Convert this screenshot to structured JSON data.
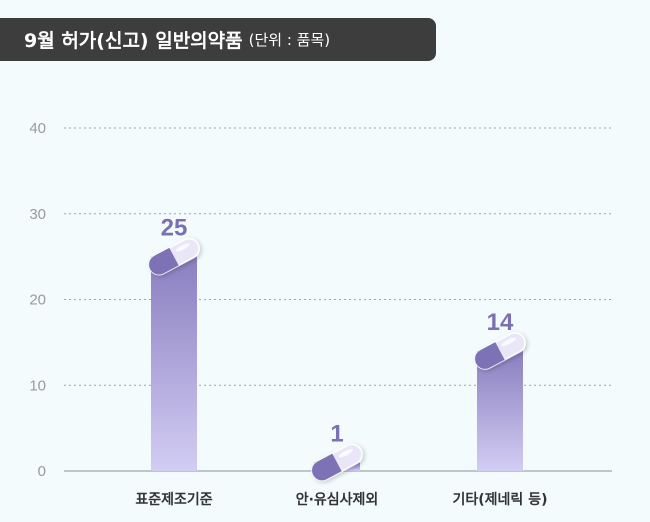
{
  "header": {
    "title": "9월 허가(신고) 일반의약품",
    "unit": "(단위 : 품목)"
  },
  "colors": {
    "bar_top": "#8a7fc0",
    "bar_bottom": "#d2cdf3",
    "capsule_dark": "#7d72b5",
    "capsule_light": "#e8e6f7",
    "label": "#7a70b3",
    "grid": "#9aa8ad",
    "title_bg": "#3d3d3d"
  },
  "chart_data": {
    "type": "bar",
    "categories": [
      "표준제조기준",
      "안·유심사제외",
      "기타(제네릭 등)"
    ],
    "values": [
      25,
      1,
      14
    ],
    "data_labels": [
      "25",
      "1",
      "14"
    ],
    "yticks": [
      0,
      10,
      20,
      30,
      40
    ],
    "ylim": [
      0,
      40
    ],
    "grid": true,
    "marker": "capsule"
  }
}
